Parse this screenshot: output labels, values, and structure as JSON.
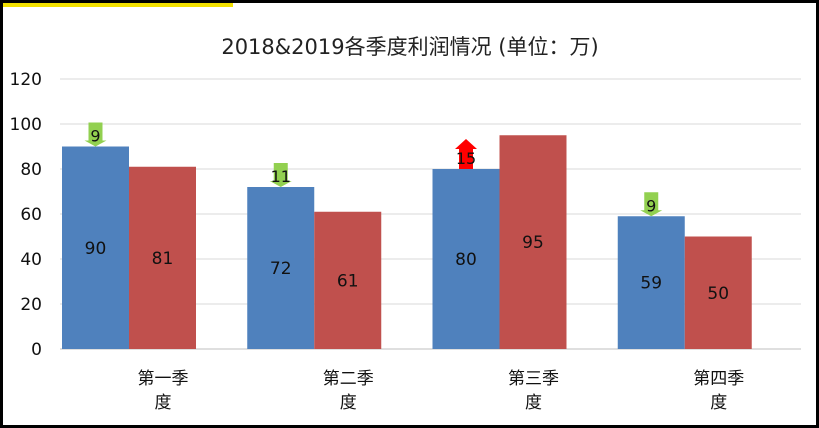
{
  "chart_data": {
    "type": "bar",
    "title": "2018&2019各季度利润情况 (单位：万)",
    "categories": [
      "第一季度",
      "第二季度",
      "第三季度",
      "第四季度"
    ],
    "category_lines": [
      [
        "第一季",
        "度"
      ],
      [
        "第二季",
        "度"
      ],
      [
        "第三季",
        "度"
      ],
      [
        "第四季",
        "度"
      ]
    ],
    "series": [
      {
        "values": [
          90,
          72,
          80,
          59
        ],
        "color": "#4f81bd"
      },
      {
        "values": [
          81,
          61,
          95,
          50
        ],
        "color": "#c0504d"
      }
    ],
    "differences": [
      {
        "value": "9",
        "direction": "down",
        "color": "#92d050"
      },
      {
        "value": "11",
        "direction": "down",
        "color": "#92d050"
      },
      {
        "value": "15",
        "direction": "up",
        "color": "#ff0000"
      },
      {
        "value": "9",
        "direction": "down",
        "color": "#92d050"
      }
    ],
    "yticks": [
      "0",
      "20",
      "40",
      "60",
      "80",
      "100",
      "120"
    ],
    "ylim": [
      0,
      120
    ],
    "grid": true,
    "legend": "none"
  }
}
